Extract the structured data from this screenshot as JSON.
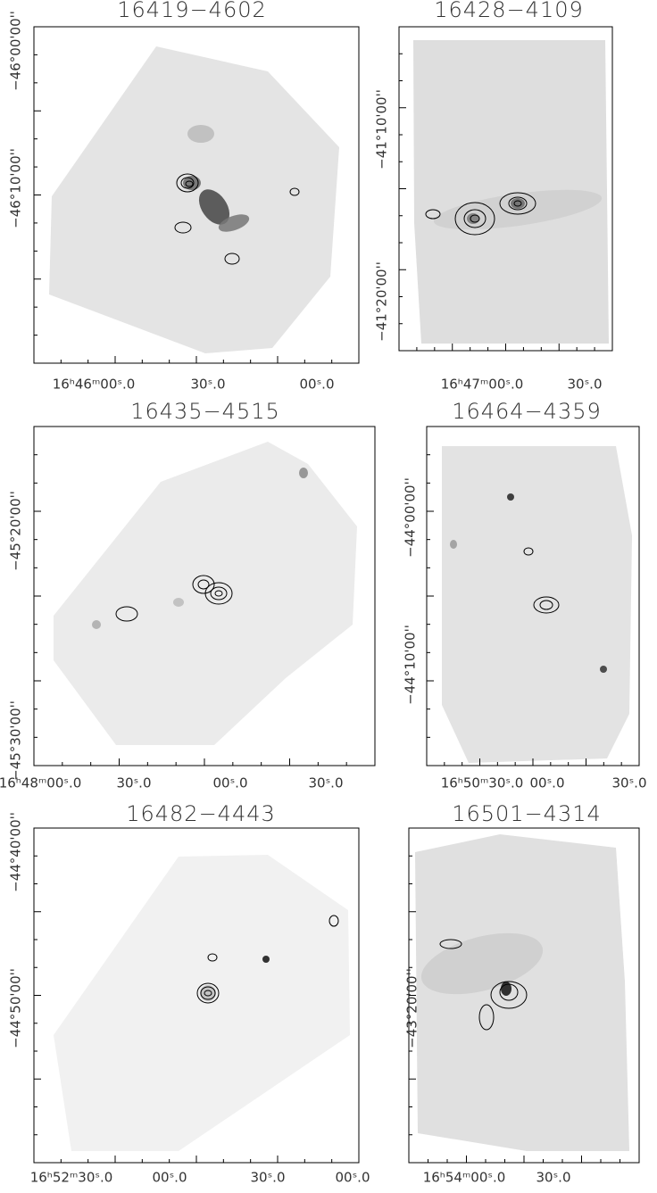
{
  "panels": [
    {
      "title": "16419−4602",
      "x_labels": [
        "16ʰ46ᵐ00ˢ.0",
        "30ˢ.0",
        "00ˢ.0"
      ],
      "y_labels": [
        "−46°00'00''",
        "−46°10'00''"
      ]
    },
    {
      "title": "16428−4109",
      "x_labels": [
        "16ʰ47ᵐ00ˢ.0",
        "30ˢ.0"
      ],
      "y_labels": [
        "−41°10'00''",
        "−41°20'00''"
      ]
    },
    {
      "title": "16435−4515",
      "x_labels": [
        "16ʰ48ᵐ00ˢ.0",
        "30ˢ.0",
        "00ˢ.0",
        "30ˢ.0"
      ],
      "y_labels": [
        "−45°20'00''",
        "−45°30'00''"
      ]
    },
    {
      "title": "16464−4359",
      "x_labels": [
        "16ʰ50ᵐ30ˢ.0",
        "00ˢ.0",
        "30ˢ.0"
      ],
      "y_labels": [
        "−44°00'00''",
        "−44°10'00''"
      ]
    },
    {
      "title": "16482−4443",
      "x_labels": [
        "16ʰ52ᵐ30ˢ.0",
        "00ˢ.0",
        "30ˢ.0",
        "00ˢ.0"
      ],
      "y_labels": [
        "−44°40'00''",
        "−44°50'00''"
      ]
    },
    {
      "title": "16501−4314",
      "x_labels": [
        "16ʰ54ᵐ00ˢ.0",
        "30ˢ.0"
      ],
      "y_labels": [
        "−43°20'00''"
      ]
    }
  ]
}
